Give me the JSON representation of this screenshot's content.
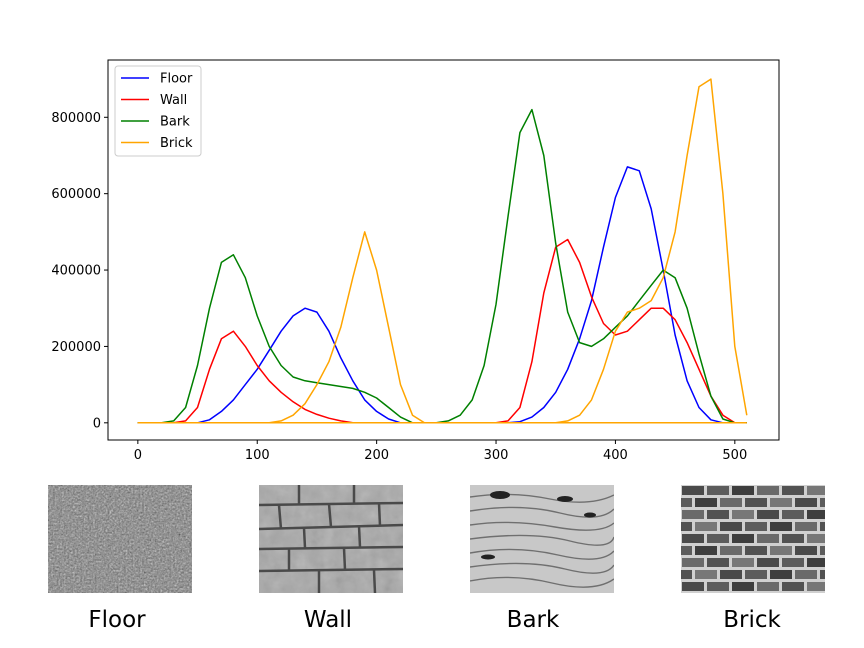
{
  "chart_data": {
    "type": "line",
    "title": "",
    "xlabel": "",
    "ylabel": "",
    "xlim": [
      -25,
      537
    ],
    "ylim": [
      -45000,
      950000
    ],
    "xticks": [
      0,
      100,
      200,
      300,
      400,
      500
    ],
    "xtick_labels": [
      "0",
      "100",
      "200",
      "300",
      "400",
      "500"
    ],
    "yticks": [
      0,
      200000,
      400000,
      600000,
      800000
    ],
    "ytick_labels": [
      "0",
      "200000",
      "400000",
      "600000",
      "800000"
    ],
    "grid": false,
    "legend_position": "top-left",
    "x": [
      0,
      10,
      20,
      30,
      40,
      50,
      60,
      70,
      80,
      90,
      100,
      110,
      120,
      130,
      140,
      150,
      160,
      170,
      180,
      190,
      200,
      210,
      220,
      230,
      240,
      250,
      260,
      270,
      280,
      290,
      300,
      310,
      320,
      330,
      340,
      350,
      360,
      370,
      380,
      390,
      400,
      410,
      420,
      430,
      440,
      450,
      460,
      470,
      480,
      490,
      500,
      510
    ],
    "series": [
      {
        "name": "Floor",
        "color": "#0000ff",
        "curves": [
          [
            0,
            0,
            0,
            0,
            0,
            0,
            8000,
            30000,
            60000,
            100000,
            140000,
            190000,
            240000,
            280000,
            300000,
            290000,
            240000,
            170000,
            110000,
            60000,
            30000,
            10000,
            0,
            0,
            0,
            0,
            0,
            0,
            0,
            0,
            0,
            0,
            0,
            0,
            0,
            0,
            0,
            0,
            0,
            0,
            0,
            0,
            0,
            0,
            0,
            0,
            0,
            0,
            0,
            0,
            0,
            0
          ],
          [
            0,
            0,
            0,
            0,
            0,
            0,
            0,
            0,
            0,
            0,
            0,
            0,
            0,
            0,
            0,
            0,
            0,
            0,
            0,
            0,
            0,
            0,
            0,
            0,
            0,
            0,
            0,
            0,
            0,
            0,
            0,
            0,
            3000,
            15000,
            40000,
            80000,
            140000,
            220000,
            320000,
            460000,
            590000,
            670000,
            660000,
            560000,
            400000,
            230000,
            110000,
            40000,
            8000,
            0,
            0,
            0
          ]
        ]
      },
      {
        "name": "Wall",
        "color": "#ff0000",
        "curves": [
          [
            0,
            0,
            0,
            0,
            5000,
            40000,
            140000,
            220000,
            240000,
            200000,
            150000,
            110000,
            80000,
            55000,
            35000,
            22000,
            12000,
            5000,
            0,
            0,
            0,
            0,
            0,
            0,
            0,
            0,
            0,
            0,
            0,
            0,
            0,
            0,
            0,
            0,
            0,
            0,
            0,
            0,
            0,
            0,
            0,
            0,
            0,
            0,
            0,
            0,
            0,
            0,
            0,
            0,
            0,
            0
          ],
          [
            0,
            0,
            0,
            0,
            0,
            0,
            0,
            0,
            0,
            0,
            0,
            0,
            0,
            0,
            0,
            0,
            0,
            0,
            0,
            0,
            0,
            0,
            0,
            0,
            0,
            0,
            0,
            0,
            0,
            0,
            0,
            5000,
            40000,
            160000,
            340000,
            460000,
            480000,
            420000,
            330000,
            260000,
            230000,
            240000,
            270000,
            300000,
            300000,
            270000,
            210000,
            140000,
            70000,
            20000,
            0,
            0
          ]
        ]
      },
      {
        "name": "Bark",
        "color": "#008000",
        "curves": [
          [
            0,
            0,
            0,
            5000,
            40000,
            150000,
            300000,
            420000,
            440000,
            380000,
            280000,
            200000,
            150000,
            120000,
            110000,
            105000,
            100000,
            95000,
            90000,
            80000,
            65000,
            40000,
            15000,
            0,
            0,
            0,
            0,
            0,
            0,
            0,
            0,
            0,
            0,
            0,
            0,
            0,
            0,
            0,
            0,
            0,
            0,
            0,
            0,
            0,
            0,
            0,
            0,
            0,
            0,
            0,
            0,
            0
          ],
          [
            0,
            0,
            0,
            0,
            0,
            0,
            0,
            0,
            0,
            0,
            0,
            0,
            0,
            0,
            0,
            0,
            0,
            0,
            0,
            0,
            0,
            0,
            0,
            0,
            0,
            0,
            5000,
            20000,
            60000,
            150000,
            310000,
            540000,
            760000,
            820000,
            700000,
            470000,
            290000,
            210000,
            200000,
            220000,
            250000,
            280000,
            320000,
            360000,
            400000,
            380000,
            300000,
            180000,
            70000,
            10000,
            0,
            0
          ]
        ]
      },
      {
        "name": "Brick",
        "color": "#ffa500",
        "curves": [
          [
            0,
            0,
            0,
            0,
            0,
            0,
            0,
            0,
            0,
            0,
            0,
            0,
            5000,
            20000,
            50000,
            100000,
            160000,
            250000,
            380000,
            500000,
            400000,
            250000,
            100000,
            20000,
            0,
            0,
            0,
            0,
            0,
            0,
            0,
            0,
            0,
            0,
            0,
            0,
            0,
            0,
            0,
            0,
            0,
            0,
            0,
            0,
            0,
            0,
            0,
            0,
            0,
            0,
            0,
            0
          ],
          [
            0,
            0,
            0,
            0,
            0,
            0,
            0,
            0,
            0,
            0,
            0,
            0,
            0,
            0,
            0,
            0,
            0,
            0,
            0,
            0,
            0,
            0,
            0,
            0,
            0,
            0,
            0,
            0,
            0,
            0,
            0,
            0,
            0,
            0,
            0,
            0,
            5000,
            20000,
            60000,
            140000,
            240000,
            290000,
            300000,
            320000,
            380000,
            500000,
            700000,
            880000,
            900000,
            600000,
            200000,
            20000
          ]
        ]
      }
    ]
  },
  "thumbnails": [
    {
      "caption": "Floor"
    },
    {
      "caption": "Wall"
    },
    {
      "caption": "Bark"
    },
    {
      "caption": "Brick"
    }
  ]
}
